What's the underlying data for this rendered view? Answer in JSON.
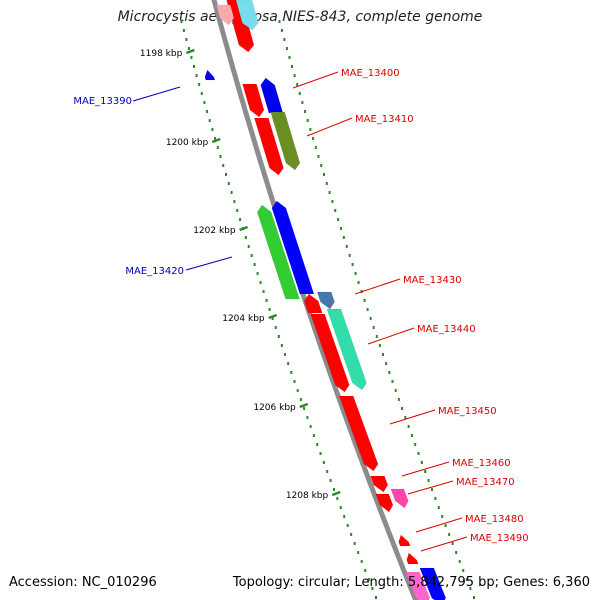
{
  "title": "Microcystis aeruginosa NIES-843, complete genome",
  "footer": {
    "accession": "Accession: NC_010296",
    "info": "Topology: circular; Length: 5,842,795 bp; Genes: 6,360"
  },
  "colors": {
    "backbone": "#8c8c8c",
    "tick": "#2a8a2a",
    "label_red": "#dd0000",
    "label_blue": "#0000bb"
  },
  "ticks": [
    "1198 kbp",
    "1200 kbp",
    "1202 kbp",
    "1204 kbp",
    "1206 kbp",
    "1208 kbp"
  ],
  "gene_labels": [
    {
      "name": "MAE_13390",
      "color": "#0000bb"
    },
    {
      "name": "MAE_13400",
      "color": "#dd0000"
    },
    {
      "name": "MAE_13410",
      "color": "#dd0000"
    },
    {
      "name": "MAE_13420",
      "color": "#0000bb"
    },
    {
      "name": "MAE_13430",
      "color": "#dd0000"
    },
    {
      "name": "MAE_13440",
      "color": "#dd0000"
    },
    {
      "name": "MAE_13450",
      "color": "#dd0000"
    },
    {
      "name": "MAE_13460",
      "color": "#dd0000"
    },
    {
      "name": "MAE_13470",
      "color": "#dd0000"
    },
    {
      "name": "MAE_13480",
      "color": "#dd0000"
    },
    {
      "name": "MAE_13490",
      "color": "#dd0000"
    }
  ]
}
